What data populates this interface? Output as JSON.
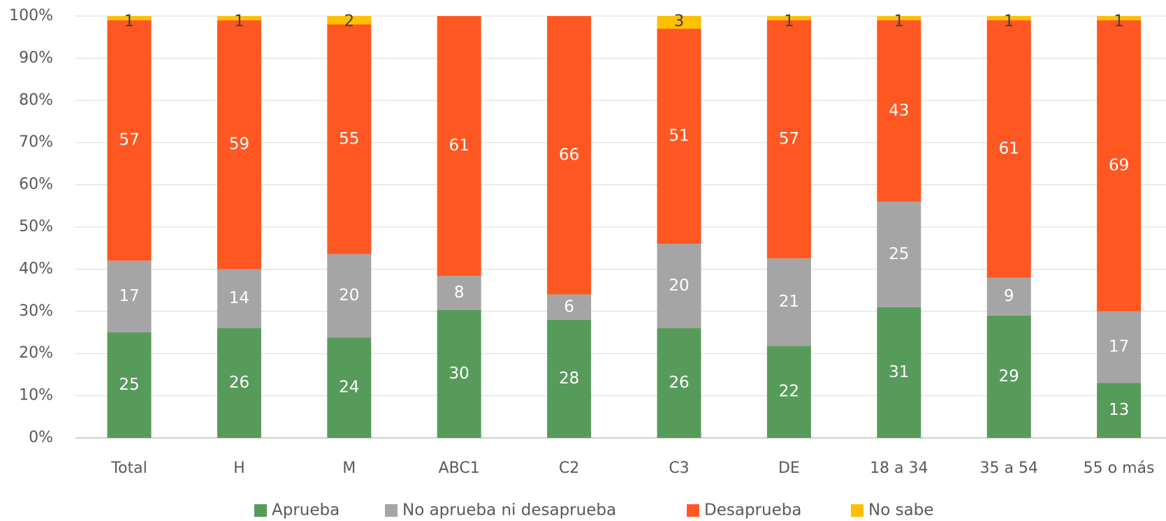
{
  "chart_data": {
    "type": "bar",
    "stacked": true,
    "percent_stacked": true,
    "categories": [
      "Total",
      "H",
      "M",
      "ABC1",
      "C2",
      "C3",
      "DE",
      "18 a 34",
      "35 a 54",
      "55 o más"
    ],
    "series": [
      {
        "name": "Aprueba",
        "color": "#579B5A",
        "label_color": "#ffffff",
        "values": [
          25,
          26,
          24,
          30,
          28,
          26,
          22,
          31,
          29,
          13
        ]
      },
      {
        "name": "No aprueba ni desaprueba",
        "color": "#A5A5A5",
        "label_color": "#ffffff",
        "values": [
          17,
          14,
          20,
          8,
          6,
          20,
          21,
          25,
          9,
          17
        ]
      },
      {
        "name": "Desaprueba",
        "color": "#FF5722",
        "label_color": "#ffffff",
        "values": [
          57,
          59,
          55,
          61,
          66,
          51,
          57,
          43,
          61,
          69
        ]
      },
      {
        "name": "No sabe",
        "color": "#FFC000",
        "label_color": "#404040",
        "values": [
          1,
          1,
          2,
          null,
          null,
          3,
          1,
          1,
          1,
          1
        ]
      }
    ],
    "y_ticks": [
      "0%",
      "10%",
      "20%",
      "30%",
      "40%",
      "50%",
      "60%",
      "70%",
      "80%",
      "90%",
      "100%"
    ],
    "ylim": [
      0,
      100
    ],
    "grid": true,
    "legend": "bottom"
  }
}
